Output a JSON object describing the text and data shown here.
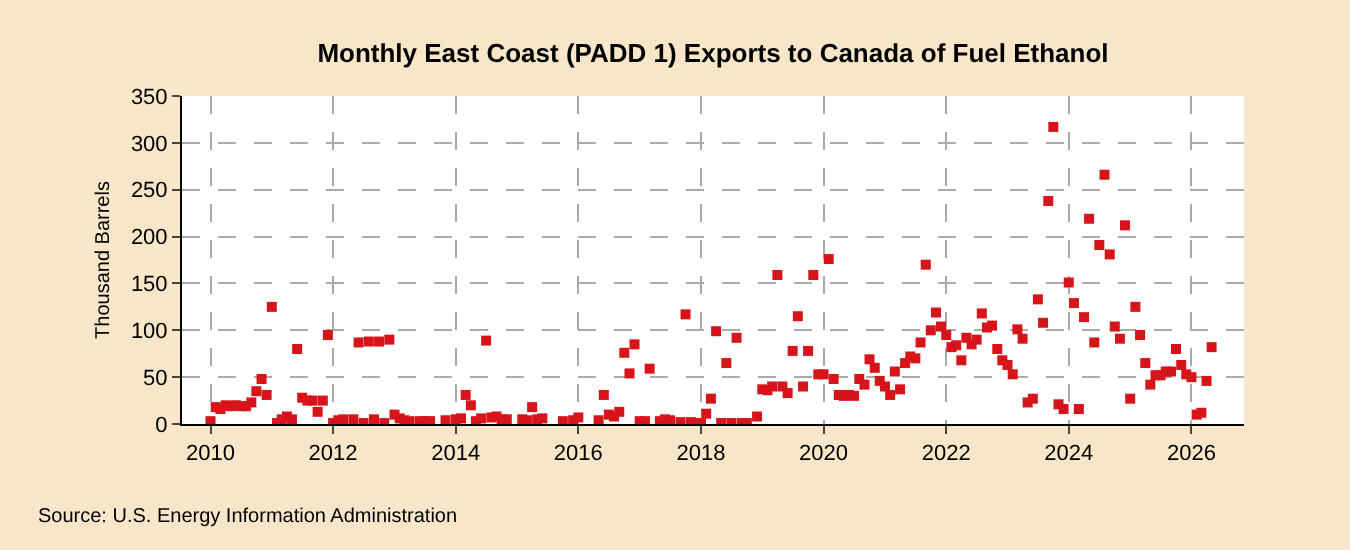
{
  "chart_data": {
    "type": "scatter",
    "title": "Monthly East Coast (PADD 1) Exports to Canada of Fuel Ethanol",
    "ylabel": "Thousand Barrels",
    "annotations": [
      "Source: U.S. Energy Information Administration"
    ],
    "marker": "square",
    "grid": true,
    "xlim": [
      "2009-07-15",
      "2026-11-10"
    ],
    "xticks": [
      "2010",
      "2012",
      "2014",
      "2016",
      "2018",
      "2020",
      "2022",
      "2024",
      "2026"
    ],
    "ylim": [
      0,
      350
    ],
    "yticks": [
      0,
      50,
      100,
      150,
      200,
      250,
      300,
      350
    ],
    "series": [
      {
        "color": "#d7141a",
        "x": [
          "2010-01",
          "2010-02",
          "2010-03",
          "2010-04",
          "2010-05",
          "2010-06",
          "2010-07",
          "2010-08",
          "2010-09",
          "2010-10",
          "2010-11",
          "2010-12",
          "2011-01",
          "2011-02",
          "2011-03",
          "2011-04",
          "2011-05",
          "2011-06",
          "2011-07",
          "2011-08",
          "2011-09",
          "2011-10",
          "2011-11",
          "2011-12",
          "2012-01",
          "2012-02",
          "2012-03",
          "2012-04",
          "2012-05",
          "2012-06",
          "2012-07",
          "2012-08",
          "2012-09",
          "2012-10",
          "2012-11",
          "2012-12",
          "2013-01",
          "2013-02",
          "2013-03",
          "2013-04",
          "2013-05",
          "2013-06",
          "2013-07",
          "2013-08",
          "2013-09",
          "2013-10",
          "2013-11",
          "2013-12",
          "2014-01",
          "2014-02",
          "2014-03",
          "2014-04",
          "2014-05",
          "2014-06",
          "2014-07",
          "2014-08",
          "2014-09",
          "2014-10",
          "2014-11",
          "2014-12",
          "2015-01",
          "2015-02",
          "2015-03",
          "2015-04",
          "2015-05",
          "2015-06",
          "2015-07",
          "2015-08",
          "2015-09",
          "2015-10",
          "2015-11",
          "2015-12",
          "2016-01",
          "2016-02",
          "2016-03",
          "2016-04",
          "2016-05",
          "2016-06",
          "2016-07",
          "2016-08",
          "2016-09",
          "2016-10",
          "2016-11",
          "2016-12",
          "2017-01",
          "2017-02",
          "2017-03",
          "2017-04",
          "2017-05",
          "2017-06",
          "2017-07",
          "2017-08",
          "2017-09",
          "2017-10",
          "2017-11",
          "2017-12",
          "2018-01",
          "2018-02",
          "2018-03",
          "2018-04",
          "2018-05",
          "2018-06",
          "2018-07",
          "2018-08",
          "2018-09",
          "2018-10",
          "2018-11",
          "2018-12",
          "2019-01",
          "2019-02",
          "2019-03",
          "2019-04",
          "2019-05",
          "2019-06",
          "2019-07",
          "2019-08",
          "2019-09",
          "2019-10",
          "2019-11",
          "2019-12",
          "2020-01",
          "2020-02",
          "2020-03",
          "2020-04",
          "2020-05",
          "2020-06",
          "2020-07",
          "2020-08",
          "2020-09",
          "2020-10",
          "2020-11",
          "2020-12",
          "2021-01",
          "2021-02",
          "2021-03",
          "2021-04",
          "2021-05",
          "2021-06",
          "2021-07",
          "2021-08",
          "2021-09",
          "2021-10",
          "2021-11",
          "2021-12",
          "2022-01",
          "2022-02",
          "2022-03",
          "2022-04",
          "2022-05",
          "2022-06",
          "2022-07",
          "2022-08",
          "2022-09",
          "2022-10",
          "2022-11",
          "2022-12",
          "2023-01",
          "2023-02",
          "2023-03",
          "2023-04",
          "2023-05",
          "2023-06",
          "2023-07",
          "2023-08",
          "2023-09",
          "2023-10",
          "2023-11",
          "2023-12",
          "2024-01",
          "2024-02",
          "2024-03",
          "2024-04",
          "2024-05",
          "2024-06",
          "2024-07",
          "2024-08",
          "2024-09",
          "2024-10",
          "2024-11",
          "2024-12",
          "2025-01",
          "2025-02",
          "2025-03",
          "2025-04",
          "2025-05",
          "2025-06",
          "2025-07",
          "2025-08",
          "2025-09",
          "2025-10",
          "2025-11",
          "2025-12",
          "2026-01",
          "2026-02",
          "2026-03",
          "2026-04",
          "2026-05"
        ],
        "values": [
          3,
          18,
          16,
          20,
          19,
          20,
          19,
          19,
          23,
          35,
          48,
          31,
          125,
          1,
          5,
          8,
          5,
          80,
          28,
          25,
          25,
          13,
          25,
          95,
          1,
          4,
          5,
          null,
          5,
          87,
          1,
          88,
          5,
          88,
          1,
          90,
          10,
          6,
          4,
          3,
          null,
          3,
          3,
          3,
          null,
          null,
          4,
          null,
          5,
          6,
          31,
          20,
          3,
          6,
          89,
          7,
          8,
          5,
          5,
          null,
          null,
          5,
          4,
          18,
          5,
          6,
          null,
          null,
          null,
          3,
          null,
          4,
          7,
          null,
          null,
          null,
          4,
          31,
          10,
          8,
          13,
          76,
          54,
          85,
          3,
          3,
          59,
          null,
          3,
          5,
          4,
          null,
          2,
          117,
          2,
          1,
          1,
          11,
          27,
          99,
          1,
          65,
          1,
          92,
          1,
          1,
          null,
          8,
          37,
          36,
          40,
          159,
          40,
          33,
          78,
          115,
          40,
          78,
          159,
          53,
          53,
          176,
          48,
          31,
          30,
          31,
          30,
          48,
          42,
          69,
          60,
          46,
          40,
          31,
          56,
          37,
          65,
          72,
          70,
          87,
          170,
          100,
          119,
          104,
          95,
          82,
          84,
          68,
          92,
          85,
          90,
          118,
          103,
          105,
          80,
          68,
          63,
          53,
          101,
          91,
          23,
          27,
          133,
          108,
          238,
          317,
          21,
          16,
          151,
          129,
          16,
          114,
          219,
          87,
          191,
          266,
          181,
          104,
          91,
          212,
          27,
          125,
          95,
          65,
          42,
          52,
          52,
          56,
          56,
          80,
          63,
          53,
          50,
          10,
          12,
          46,
          82
        ]
      }
    ]
  }
}
